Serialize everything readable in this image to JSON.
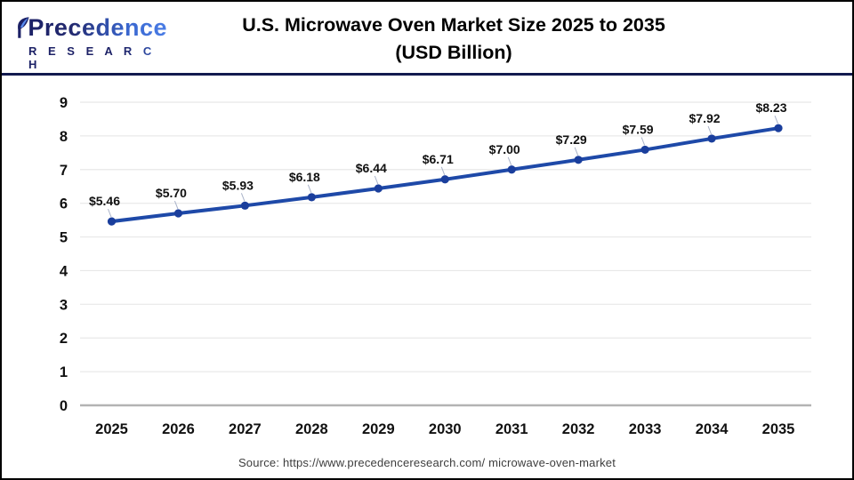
{
  "logo": {
    "brand": "Precedence",
    "brand_sub": "R E S E A R C H"
  },
  "title": {
    "line1": "U.S. Microwave Oven Market Size 2025 to 2035",
    "line2": "(USD Billion)"
  },
  "source_text": "Source: https://www.precedenceresearch.com/ microwave-oven-market",
  "chart_data": {
    "type": "line",
    "title": "U.S. Microwave Oven Market Size 2025 to 2035 (USD Billion)",
    "categories": [
      "2025",
      "2026",
      "2027",
      "2028",
      "2029",
      "2030",
      "2031",
      "2032",
      "2033",
      "2034",
      "2035"
    ],
    "series": [
      {
        "name": "U.S. Microwave Oven Market Size (USD Billion)",
        "values": [
          5.46,
          5.7,
          5.93,
          6.18,
          6.44,
          6.71,
          7.0,
          7.29,
          7.59,
          7.92,
          8.23
        ],
        "labels": [
          "$5.46",
          "$5.70",
          "$5.93",
          "$6.18",
          "$6.44",
          "$6.71",
          "$7.00",
          "$7.29",
          "$7.59",
          "$7.92",
          "$8.23"
        ]
      }
    ],
    "ylim": [
      0,
      9
    ],
    "ytick_step": 1,
    "grid": true,
    "legend": "none",
    "line_color": "#1e49a8",
    "point_color": "#1a3e9c",
    "grid_color": "#e8e8e8",
    "axis_line_color": "#b3b3b3",
    "tick_label_color": "#111111",
    "data_label_color": "#111111",
    "leader_line_color": "#a9b2c8"
  },
  "colors": {
    "header_divider": "#121a4f",
    "page_border": "#000000",
    "logo_navy": "#1c2166",
    "logo_blue": "#4a7de6",
    "source_text": "#3d3d3d"
  }
}
